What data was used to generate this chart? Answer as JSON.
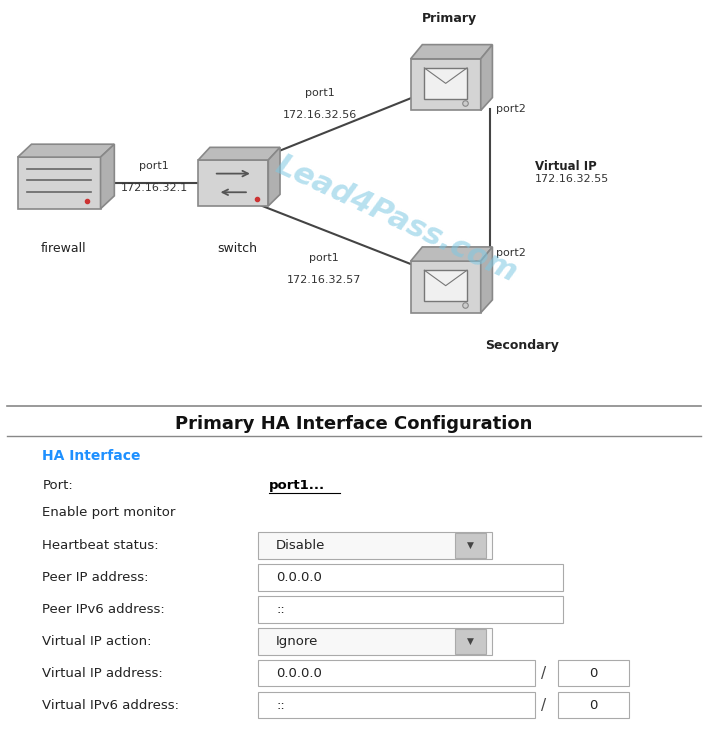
{
  "bg_color": "#ffffff",
  "title_top": "Primary HA Interface Configuration",
  "title_fontsize": 13,
  "watermark_text": "Lead4Pass.com",
  "watermark_color": "#7ec8e3",
  "watermark_alpha": 0.55,
  "form_fields": [
    {
      "label": "HA Interface",
      "value": "",
      "type": "header"
    },
    {
      "label": "Port:",
      "value": "port1...",
      "type": "link"
    },
    {
      "label": "Enable port monitor",
      "value": "",
      "type": "text"
    },
    {
      "label": "Heartbeat status:",
      "value": "Disable",
      "type": "dropdown"
    },
    {
      "label": "Peer IP address:",
      "value": "0.0.0.0",
      "type": "input"
    },
    {
      "label": "Peer IPv6 address:",
      "value": "::",
      "type": "input"
    },
    {
      "label": "Virtual IP action:",
      "value": "Ignore",
      "type": "dropdown"
    },
    {
      "label": "Virtual IP address:",
      "value": "0.0.0.0",
      "type": "input_slash",
      "extra": "0"
    },
    {
      "label": "Virtual IPv6 address:",
      "value": "::",
      "type": "input_slash",
      "extra": "0"
    }
  ]
}
